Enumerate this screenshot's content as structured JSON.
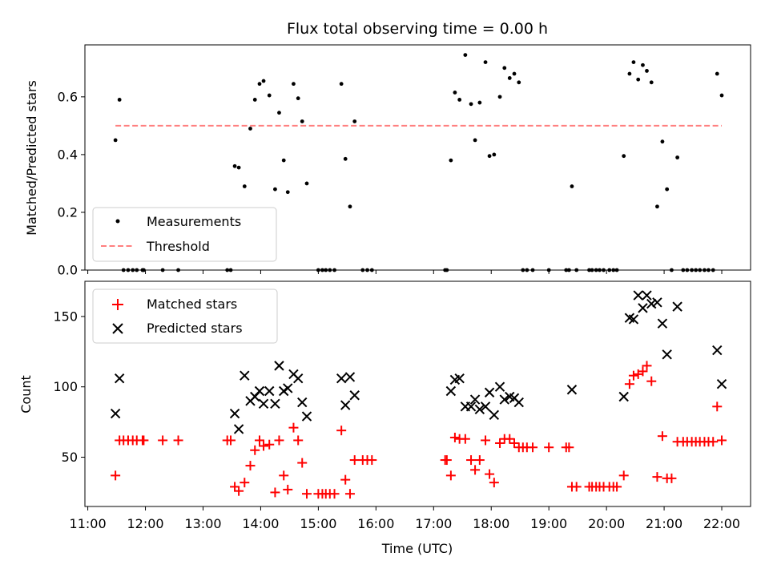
{
  "chart_data": [
    {
      "type": "scatter",
      "title": "Flux total observing time = 0.00 h",
      "xlabel": "",
      "ylabel": "Matched/Predicted stars",
      "ylim": [
        0,
        0.78
      ],
      "yticks": [
        0.0,
        0.2,
        0.4,
        0.6
      ],
      "ytick_labels": [
        "0.0",
        "0.2",
        "0.4",
        "0.6"
      ],
      "x_unit": "hours UTC",
      "xlim": [
        10.95,
        22.5
      ],
      "grid": false,
      "legend_placement": "lower-left",
      "series": [
        {
          "name": "Measurements",
          "kind": "scatter",
          "color": "#000000",
          "x": [
            11.48,
            11.55,
            11.62,
            11.7,
            11.78,
            11.85,
            11.95,
            11.97,
            12.3,
            12.57,
            13.42,
            13.48,
            13.55,
            13.62,
            13.72,
            13.82,
            13.9,
            13.98,
            14.05,
            14.15,
            14.25,
            14.32,
            14.4,
            14.47,
            14.57,
            14.65,
            14.72,
            14.8,
            15.0,
            15.07,
            15.13,
            15.2,
            15.28,
            15.4,
            15.47,
            15.55,
            15.63,
            15.77,
            15.85,
            15.93,
            17.2,
            17.23,
            17.3,
            17.37,
            17.45,
            17.55,
            17.65,
            17.72,
            17.8,
            17.9,
            17.97,
            18.05,
            18.15,
            18.23,
            18.32,
            18.4,
            18.48,
            18.55,
            18.62,
            18.72,
            19.0,
            19.3,
            19.35,
            19.4,
            19.48,
            19.7,
            19.75,
            19.82,
            19.88,
            19.95,
            20.05,
            20.12,
            20.18,
            20.3,
            20.4,
            20.47,
            20.55,
            20.63,
            20.7,
            20.78,
            20.88,
            20.97,
            21.05,
            21.13,
            21.23,
            21.33,
            21.4,
            21.48,
            21.55,
            21.62,
            21.7,
            21.77,
            21.85,
            21.92,
            22.0
          ],
          "y": [
            0.45,
            0.59,
            0.0,
            0.0,
            0.0,
            0.0,
            0.0,
            0.0,
            0.0,
            0.0,
            0.0,
            0.0,
            0.36,
            0.355,
            0.29,
            0.49,
            0.59,
            0.645,
            0.655,
            0.605,
            0.28,
            0.545,
            0.38,
            0.27,
            0.645,
            0.595,
            0.515,
            0.3,
            0.0,
            0.0,
            0.0,
            0.0,
            0.0,
            0.645,
            0.385,
            0.22,
            0.515,
            0.0,
            0.0,
            0.0,
            0.0,
            0.0,
            0.38,
            0.615,
            0.59,
            0.745,
            0.575,
            0.45,
            0.58,
            0.72,
            0.395,
            0.4,
            0.6,
            0.7,
            0.665,
            0.68,
            0.65,
            0.0,
            0.0,
            0.0,
            0.0,
            0.0,
            0.0,
            0.29,
            0.0,
            0.0,
            0.0,
            0.0,
            0.0,
            0.0,
            0.0,
            0.0,
            0.0,
            0.395,
            0.68,
            0.72,
            0.66,
            0.71,
            0.69,
            0.65,
            0.22,
            0.445,
            0.28,
            0.0,
            0.39,
            0.0,
            0.0,
            0.0,
            0.0,
            0.0,
            0.0,
            0.0,
            0.0,
            0.68,
            0.605
          ]
        },
        {
          "name": "Threshold",
          "kind": "dashed-line",
          "color": "#ff7f7f",
          "x": [
            11.48,
            22.0
          ],
          "y": [
            0.5,
            0.5
          ]
        }
      ]
    },
    {
      "type": "scatter",
      "title": "",
      "xlabel": "Time (UTC)",
      "ylabel": "Count",
      "ylim": [
        15,
        175
      ],
      "yticks": [
        50,
        100,
        150
      ],
      "ytick_labels": [
        "50",
        "100",
        "150"
      ],
      "x_unit": "hours UTC",
      "xlim": [
        10.95,
        22.5
      ],
      "xticks": [
        11,
        12,
        13,
        14,
        15,
        16,
        17,
        18,
        19,
        20,
        21,
        22
      ],
      "xtick_labels": [
        "11:00",
        "12:00",
        "13:00",
        "14:00",
        "15:00",
        "16:00",
        "17:00",
        "18:00",
        "19:00",
        "20:00",
        "21:00",
        "22:00"
      ],
      "grid": false,
      "legend_placement": "upper-left",
      "series": [
        {
          "name": "Matched stars",
          "marker": "plus",
          "color": "#ff0000",
          "x": [
            11.48,
            11.55,
            11.62,
            11.7,
            11.78,
            11.85,
            11.95,
            11.97,
            12.3,
            12.57,
            13.42,
            13.48,
            13.55,
            13.62,
            13.72,
            13.82,
            13.9,
            13.98,
            14.05,
            14.15,
            14.25,
            14.32,
            14.4,
            14.47,
            14.57,
            14.65,
            14.72,
            14.8,
            15.0,
            15.07,
            15.13,
            15.2,
            15.28,
            15.4,
            15.47,
            15.55,
            15.63,
            15.77,
            15.85,
            15.93,
            17.2,
            17.23,
            17.3,
            17.37,
            17.45,
            17.55,
            17.65,
            17.72,
            17.8,
            17.9,
            17.97,
            18.05,
            18.15,
            18.23,
            18.32,
            18.4,
            18.48,
            18.55,
            18.62,
            18.72,
            19.0,
            19.3,
            19.35,
            19.4,
            19.48,
            19.7,
            19.75,
            19.82,
            19.88,
            19.95,
            20.05,
            20.12,
            20.18,
            20.3,
            20.4,
            20.47,
            20.55,
            20.63,
            20.7,
            20.78,
            20.88,
            20.97,
            21.05,
            21.13,
            21.23,
            21.33,
            21.4,
            21.48,
            21.55,
            21.62,
            21.7,
            21.77,
            21.85,
            21.92,
            22.0
          ],
          "y": [
            37,
            62,
            62,
            62,
            62,
            62,
            62,
            62,
            62,
            62,
            62,
            62,
            29,
            26,
            32,
            44,
            55,
            62,
            58,
            59,
            25,
            62,
            37,
            27,
            71,
            62,
            46,
            24,
            24,
            24,
            24,
            24,
            24,
            69,
            34,
            24,
            48,
            48,
            48,
            48,
            48,
            48,
            37,
            64,
            63,
            63,
            48,
            41,
            48,
            62,
            38,
            32,
            60,
            63,
            63,
            60,
            57,
            57,
            57,
            57,
            57,
            57,
            57,
            29,
            29,
            29,
            29,
            29,
            29,
            29,
            29,
            29,
            29,
            37,
            102,
            108,
            109,
            111,
            115,
            104,
            36,
            65,
            35,
            35,
            61,
            61,
            61,
            61,
            61,
            61,
            61,
            61,
            61,
            86,
            62
          ]
        },
        {
          "name": "Predicted stars",
          "marker": "x",
          "color": "#000000",
          "x": [
            11.48,
            11.55,
            13.55,
            13.62,
            13.72,
            13.82,
            13.9,
            13.98,
            14.05,
            14.15,
            14.25,
            14.32,
            14.4,
            14.47,
            14.57,
            14.65,
            14.72,
            14.8,
            15.4,
            15.47,
            15.55,
            15.63,
            17.3,
            17.37,
            17.45,
            17.55,
            17.65,
            17.72,
            17.8,
            17.9,
            17.97,
            18.05,
            18.15,
            18.23,
            18.32,
            18.4,
            18.48,
            19.4,
            20.3,
            20.4,
            20.47,
            20.55,
            20.63,
            20.7,
            20.78,
            20.88,
            20.97,
            21.05,
            21.23,
            21.92,
            22.0
          ],
          "y": [
            81,
            106,
            81,
            70,
            108,
            90,
            93,
            97,
            88,
            97,
            88,
            115,
            97,
            99,
            109,
            106,
            89,
            79,
            106,
            87,
            107,
            94,
            97,
            105,
            106,
            86,
            86,
            91,
            84,
            86,
            96,
            80,
            100,
            91,
            93,
            92,
            89,
            98,
            93,
            149,
            148,
            165,
            156,
            165,
            159,
            160,
            145,
            123,
            157,
            126,
            102
          ]
        }
      ]
    }
  ]
}
